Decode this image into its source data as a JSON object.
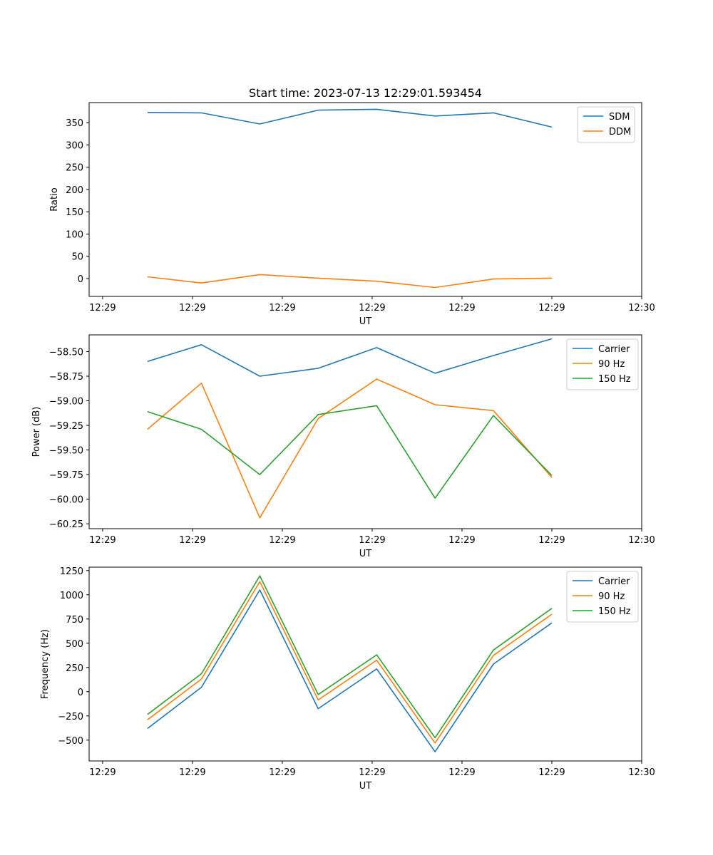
{
  "figure": {
    "title": "Start time: 2023-07-13 12:29:01.593454"
  },
  "chart_data": [
    {
      "type": "line",
      "title": "Start time: 2023-07-13 12:29:01.593454",
      "xlabel": "UT",
      "ylabel": "Ratio",
      "x": [
        0.5,
        1.1,
        1.75,
        2.4,
        3.05,
        3.7,
        4.35,
        5.0
      ],
      "xlim": [
        -0.15,
        6.0
      ],
      "xticks": [
        0,
        1,
        2,
        3,
        4,
        5,
        6
      ],
      "xtick_labels": [
        "12:29",
        "12:29",
        "12:29",
        "12:29",
        "12:29",
        "12:29",
        "12:30"
      ],
      "ylim": [
        -40,
        395
      ],
      "yticks": [
        0,
        50,
        100,
        150,
        200,
        250,
        300,
        350
      ],
      "ytick_labels": [
        "0",
        "50",
        "100",
        "150",
        "200",
        "250",
        "300",
        "350"
      ],
      "legend_position": "top-right",
      "series": [
        {
          "name": "SDM",
          "color": "#1f77b4",
          "values": [
            373,
            372,
            347,
            378,
            380,
            365,
            372,
            340
          ]
        },
        {
          "name": "DDM",
          "color": "#ff7f0e",
          "values": [
            4,
            -10,
            9,
            1,
            -6,
            -20,
            -1,
            1
          ]
        }
      ]
    },
    {
      "type": "line",
      "title": "",
      "xlabel": "UT",
      "ylabel": "Power (dB)",
      "x": [
        0.5,
        1.1,
        1.75,
        2.4,
        3.05,
        3.7,
        4.35,
        5.0
      ],
      "xlim": [
        -0.15,
        6.0
      ],
      "xticks": [
        0,
        1,
        2,
        3,
        4,
        5,
        6
      ],
      "xtick_labels": [
        "12:29",
        "12:29",
        "12:29",
        "12:29",
        "12:29",
        "12:29",
        "12:30"
      ],
      "ylim": [
        -60.3,
        -58.33
      ],
      "yticks": [
        -58.5,
        -58.75,
        -59.0,
        -59.25,
        -59.5,
        -59.75,
        -60.0,
        -60.25
      ],
      "ytick_labels": [
        "−58.50",
        "−58.75",
        "−59.00",
        "−59.25",
        "−59.50",
        "−59.75",
        "−60.00",
        "−60.25"
      ],
      "legend_position": "top-right",
      "series": [
        {
          "name": "Carrier",
          "color": "#1f77b4",
          "values": [
            -58.6,
            -58.43,
            -58.75,
            -58.67,
            -58.46,
            -58.72,
            -58.54,
            -58.37
          ]
        },
        {
          "name": "90 Hz",
          "color": "#ff7f0e",
          "values": [
            -59.29,
            -58.82,
            -60.19,
            -59.18,
            -58.78,
            -59.04,
            -59.1,
            -59.78
          ]
        },
        {
          "name": "150 Hz",
          "color": "#2ca02c",
          "values": [
            -59.11,
            -59.29,
            -59.75,
            -59.14,
            -59.05,
            -59.99,
            -59.15,
            -59.76
          ]
        }
      ]
    },
    {
      "type": "line",
      "title": "",
      "xlabel": "UT",
      "ylabel": "Frequency (Hz)",
      "x": [
        0.5,
        1.1,
        1.75,
        2.4,
        3.05,
        3.7,
        4.35,
        5.0
      ],
      "xlim": [
        -0.15,
        6.0
      ],
      "xticks": [
        0,
        1,
        2,
        3,
        4,
        5,
        6
      ],
      "xtick_labels": [
        "12:29",
        "12:29",
        "12:29",
        "12:29",
        "12:29",
        "12:29",
        "12:30"
      ],
      "ylim": [
        -715,
        1285
      ],
      "yticks": [
        1250,
        1000,
        750,
        500,
        250,
        0,
        -250,
        -500
      ],
      "ytick_labels": [
        "1250",
        "1000",
        "750",
        "500",
        "250",
        "0",
        "−250",
        "−500"
      ],
      "legend_position": "top-right",
      "series": [
        {
          "name": "Carrier",
          "color": "#1f77b4",
          "values": [
            -380,
            45,
            1050,
            -175,
            235,
            -620,
            285,
            710
          ]
        },
        {
          "name": "90 Hz",
          "color": "#ff7f0e",
          "values": [
            -290,
            130,
            1135,
            -85,
            325,
            -530,
            375,
            800
          ]
        },
        {
          "name": "150 Hz",
          "color": "#2ca02c",
          "values": [
            -235,
            185,
            1195,
            -30,
            380,
            -475,
            430,
            860
          ]
        }
      ]
    }
  ]
}
